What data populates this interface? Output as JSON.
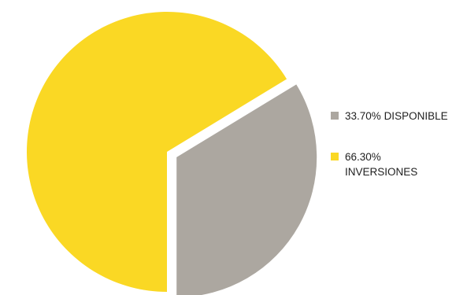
{
  "chart_data": {
    "type": "pie",
    "slices": [
      {
        "label": "DISPONIBLE",
        "value": 33.7,
        "pct_label": "33.70%",
        "color": "#aca7a0",
        "exploded": true
      },
      {
        "label": "INVERSIONES",
        "value": 66.3,
        "pct_label": "66.30%",
        "color": "#fad824",
        "exploded": false
      }
    ],
    "legend_position": "right",
    "legend": [
      {
        "pct": "33.70%",
        "label": "DISPONIBLE",
        "color": "#aca7a0"
      },
      {
        "pct": "66.30%",
        "label": "INVERSIONES",
        "color": "#fad824"
      }
    ]
  }
}
